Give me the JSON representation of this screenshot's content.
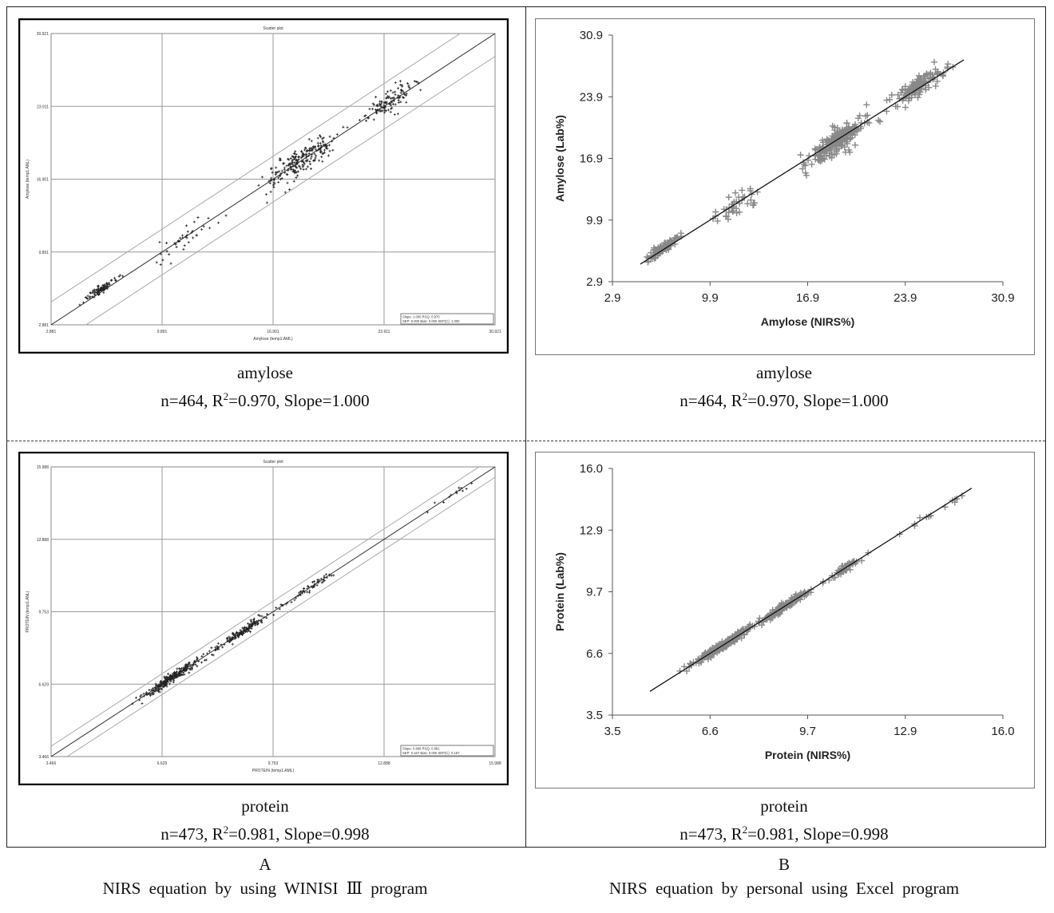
{
  "chart_data": [
    {
      "type": "scatter",
      "panel": "A-top",
      "title": "Scatter plot",
      "xlabel": "Amylose (temp1.AML)",
      "ylabel": "Amylose (temp1.ANL)",
      "xlim": [
        2.881,
        30.921
      ],
      "ylim": [
        2.881,
        30.921
      ],
      "xticks": [
        "2.881",
        "9.891",
        "16.901",
        "23.911",
        "30.921"
      ],
      "yticks": [
        "2.881",
        "9.891",
        "16.901",
        "23.911",
        "30.921"
      ],
      "stats_box": [
        "Slope: 1.000   RSQ: 0.970",
        "SEP: 0.000  Bias: 0.000  SEP(C): 1.000"
      ],
      "fit_line": {
        "slope": 1.0,
        "intercept": 0.0
      },
      "confidence_offset": 2.2,
      "clusters": [
        {
          "cx": 6.0,
          "cy": 6.3,
          "n": 90,
          "spread_x": 0.9,
          "spread_y": 0.35
        },
        {
          "cx": 11.5,
          "cy": 11.5,
          "n": 40,
          "spread_x": 1.6,
          "spread_y": 1.0
        },
        {
          "cx": 18.6,
          "cy": 18.6,
          "n": 220,
          "spread_x": 2.0,
          "spread_y": 1.1
        },
        {
          "cx": 24.2,
          "cy": 24.4,
          "n": 114,
          "spread_x": 1.5,
          "spread_y": 0.9
        }
      ]
    },
    {
      "type": "scatter",
      "panel": "B-top",
      "xlabel": "Amylose (NIRS%)",
      "ylabel": "Amylose (Lab%)",
      "xlim": [
        2.9,
        30.9
      ],
      "ylim": [
        2.9,
        30.9
      ],
      "xticks": [
        "2.9",
        "9.9",
        "16.9",
        "23.9",
        "30.9"
      ],
      "yticks": [
        "2.9",
        "9.9",
        "16.9",
        "23.9",
        "30.9"
      ],
      "fit_line": {
        "slope": 1.0,
        "intercept": 0.0,
        "x_range": [
          4.9,
          28.1
        ]
      },
      "clusters": [
        {
          "cx": 6.5,
          "cy": 6.7,
          "n": 90,
          "spread_x": 1.0,
          "spread_y": 0.45
        },
        {
          "cx": 11.8,
          "cy": 11.6,
          "n": 40,
          "spread_x": 1.6,
          "spread_y": 1.1
        },
        {
          "cx": 19.0,
          "cy": 18.8,
          "n": 220,
          "spread_x": 2.1,
          "spread_y": 1.2
        },
        {
          "cx": 25.0,
          "cy": 25.3,
          "n": 114,
          "spread_x": 1.7,
          "spread_y": 0.9
        }
      ]
    },
    {
      "type": "scatter",
      "panel": "A-bottom",
      "title": "Scatter plot",
      "xlabel": "PROTEIN (temp1.AML)",
      "ylabel": "PROTEIN (temp1.ANL)",
      "xlim": [
        3.466,
        15.988
      ],
      "ylim": [
        3.466,
        15.988
      ],
      "xticks": [
        "3.466",
        "6.629",
        "9.753",
        "12.888",
        "15.988"
      ],
      "yticks": [
        "3.466",
        "6.629",
        "9.753",
        "12.888",
        "15.988"
      ],
      "stats_box": [
        "Slope: 0.998   RSQ: 0.981",
        "SEP: 0.167  Bias: 0.000  SEP(C): 0.167"
      ],
      "fit_line": {
        "slope": 1.0,
        "intercept": 0.0
      },
      "confidence_offset": 0.45,
      "clusters": [
        {
          "cx": 6.9,
          "cy": 6.9,
          "n": 260,
          "spread_x": 0.7,
          "spread_y": 0.18
        },
        {
          "cx": 8.9,
          "cy": 8.9,
          "n": 150,
          "spread_x": 0.7,
          "spread_y": 0.18
        },
        {
          "cx": 10.8,
          "cy": 10.8,
          "n": 50,
          "spread_x": 0.6,
          "spread_y": 0.18
        },
        {
          "cx": 14.8,
          "cy": 14.8,
          "n": 13,
          "spread_x": 0.9,
          "spread_y": 0.15
        }
      ]
    },
    {
      "type": "scatter",
      "panel": "B-bottom",
      "xlabel": "Protein (NIRS%)",
      "ylabel": "Protein (Lab%)",
      "xlim": [
        3.5,
        16.0
      ],
      "ylim": [
        3.5,
        16.0
      ],
      "xticks": [
        "3.5",
        "6.6",
        "9.7",
        "12.9",
        "16.0"
      ],
      "yticks": [
        "3.5",
        "6.6",
        "9.7",
        "12.9",
        "16.0"
      ],
      "fit_line": {
        "slope": 1.0,
        "intercept": 0.0,
        "x_range": [
          4.7,
          15.0
        ]
      },
      "clusters": [
        {
          "cx": 7.0,
          "cy": 7.0,
          "n": 260,
          "spread_x": 0.8,
          "spread_y": 0.16
        },
        {
          "cx": 9.0,
          "cy": 9.0,
          "n": 150,
          "spread_x": 0.7,
          "spread_y": 0.16
        },
        {
          "cx": 10.9,
          "cy": 10.9,
          "n": 50,
          "spread_x": 0.6,
          "spread_y": 0.16
        },
        {
          "cx": 13.5,
          "cy": 13.5,
          "n": 13,
          "spread_x": 1.3,
          "spread_y": 0.15
        }
      ]
    }
  ],
  "captions": {
    "a_top": {
      "name": "amylose",
      "stats_pre": "n=464,  R",
      "sup": "2",
      "stats_post": "=0.970,  Slope=1.000"
    },
    "b_top": {
      "name": "amylose",
      "stats_pre": "n=464,  R",
      "sup": "2",
      "stats_post": "=0.970,  Slope=1.000"
    },
    "a_bottom": {
      "name": "protein",
      "stats_pre": "n=473,  R",
      "sup": "2",
      "stats_post": "=0.981,  Slope=0.998"
    },
    "b_bottom": {
      "name": "protein",
      "stats_pre": "n=473,  R",
      "sup": "2",
      "stats_post": "=0.981,  Slope=0.998"
    }
  },
  "footer": {
    "a_letter": "A",
    "a_text": "NIRS equation by using WINISI Ⅲ program",
    "b_letter": "B",
    "b_text": "NIRS equation by personal using Excel program"
  },
  "colors": {
    "winisi_point": "#222222",
    "excel_point": "#888888",
    "line": "#111111",
    "grid": "#c8c8c8"
  }
}
